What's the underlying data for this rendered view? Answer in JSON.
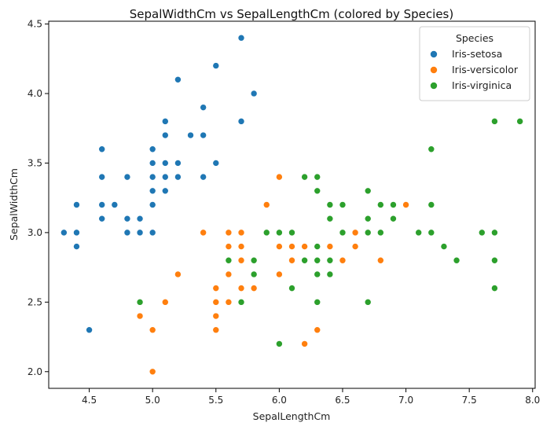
{
  "chart_data": {
    "type": "scatter",
    "title": "SepalWidthCm vs SepalLengthCm (colored by Species)",
    "xlabel": "SepalLengthCm",
    "ylabel": "SepalWidthCm",
    "xlim": [
      4.18,
      8.02
    ],
    "ylim": [
      1.88,
      4.52
    ],
    "xticks": [
      4.5,
      5.0,
      5.5,
      6.0,
      6.5,
      7.0,
      7.5,
      8.0
    ],
    "yticks": [
      2.0,
      2.5,
      3.0,
      3.5,
      4.0,
      4.5
    ],
    "grid": false,
    "legend": {
      "title": "Species",
      "placement": "top-right"
    },
    "series": [
      {
        "name": "Iris-setosa",
        "color": "#1f77b4",
        "points": [
          [
            4.3,
            3.0
          ],
          [
            4.4,
            3.2
          ],
          [
            4.4,
            3.0
          ],
          [
            4.4,
            2.9
          ],
          [
            4.5,
            2.3
          ],
          [
            4.6,
            3.6
          ],
          [
            4.6,
            3.4
          ],
          [
            4.6,
            3.2
          ],
          [
            4.6,
            3.1
          ],
          [
            4.7,
            3.2
          ],
          [
            4.8,
            3.4
          ],
          [
            4.8,
            3.1
          ],
          [
            4.8,
            3.0
          ],
          [
            4.9,
            3.1
          ],
          [
            4.9,
            3.0
          ],
          [
            5.0,
            3.6
          ],
          [
            5.0,
            3.5
          ],
          [
            5.0,
            3.4
          ],
          [
            5.0,
            3.3
          ],
          [
            5.0,
            3.2
          ],
          [
            5.0,
            3.0
          ],
          [
            5.1,
            3.8
          ],
          [
            5.1,
            3.7
          ],
          [
            5.1,
            3.5
          ],
          [
            5.1,
            3.4
          ],
          [
            5.1,
            3.3
          ],
          [
            5.2,
            4.1
          ],
          [
            5.2,
            3.5
          ],
          [
            5.2,
            3.4
          ],
          [
            5.3,
            3.7
          ],
          [
            5.4,
            3.9
          ],
          [
            5.4,
            3.7
          ],
          [
            5.4,
            3.4
          ],
          [
            5.5,
            4.2
          ],
          [
            5.5,
            3.5
          ],
          [
            5.7,
            4.4
          ],
          [
            5.7,
            3.8
          ],
          [
            5.8,
            4.0
          ]
        ]
      },
      {
        "name": "Iris-versicolor",
        "color": "#ff7f0e",
        "points": [
          [
            4.9,
            2.4
          ],
          [
            5.0,
            2.3
          ],
          [
            5.0,
            2.0
          ],
          [
            5.1,
            2.5
          ],
          [
            5.2,
            2.7
          ],
          [
            5.4,
            3.0
          ],
          [
            5.5,
            2.6
          ],
          [
            5.5,
            2.5
          ],
          [
            5.5,
            2.4
          ],
          [
            5.5,
            2.3
          ],
          [
            5.6,
            3.0
          ],
          [
            5.6,
            2.9
          ],
          [
            5.6,
            2.7
          ],
          [
            5.6,
            2.5
          ],
          [
            5.7,
            3.0
          ],
          [
            5.7,
            2.9
          ],
          [
            5.7,
            2.8
          ],
          [
            5.7,
            2.6
          ],
          [
            5.8,
            2.7
          ],
          [
            5.8,
            2.6
          ],
          [
            5.9,
            3.2
          ],
          [
            5.9,
            3.0
          ],
          [
            6.0,
            3.4
          ],
          [
            6.0,
            2.9
          ],
          [
            6.0,
            2.7
          ],
          [
            6.1,
            3.0
          ],
          [
            6.1,
            2.9
          ],
          [
            6.1,
            2.8
          ],
          [
            6.2,
            2.9
          ],
          [
            6.2,
            2.2
          ],
          [
            6.3,
            2.5
          ],
          [
            6.3,
            2.3
          ],
          [
            6.4,
            2.9
          ],
          [
            6.5,
            2.8
          ],
          [
            6.6,
            3.0
          ],
          [
            6.6,
            2.9
          ],
          [
            6.7,
            3.1
          ],
          [
            6.7,
            3.0
          ],
          [
            6.8,
            2.8
          ],
          [
            6.9,
            3.1
          ],
          [
            7.0,
            3.2
          ]
        ]
      },
      {
        "name": "Iris-virginica",
        "color": "#2ca02c",
        "points": [
          [
            4.9,
            2.5
          ],
          [
            5.6,
            2.8
          ],
          [
            5.7,
            2.5
          ],
          [
            5.8,
            2.8
          ],
          [
            5.8,
            2.7
          ],
          [
            5.9,
            3.0
          ],
          [
            6.0,
            3.0
          ],
          [
            6.0,
            2.2
          ],
          [
            6.1,
            3.0
          ],
          [
            6.1,
            2.6
          ],
          [
            6.2,
            3.4
          ],
          [
            6.2,
            2.8
          ],
          [
            6.3,
            3.4
          ],
          [
            6.3,
            3.3
          ],
          [
            6.3,
            2.9
          ],
          [
            6.3,
            2.8
          ],
          [
            6.3,
            2.7
          ],
          [
            6.3,
            2.5
          ],
          [
            6.4,
            3.2
          ],
          [
            6.4,
            3.1
          ],
          [
            6.4,
            2.8
          ],
          [
            6.4,
            2.7
          ],
          [
            6.5,
            3.2
          ],
          [
            6.5,
            3.0
          ],
          [
            6.7,
            3.3
          ],
          [
            6.7,
            3.1
          ],
          [
            6.7,
            3.0
          ],
          [
            6.7,
            2.5
          ],
          [
            6.8,
            3.2
          ],
          [
            6.8,
            3.0
          ],
          [
            6.9,
            3.2
          ],
          [
            6.9,
            3.1
          ],
          [
            7.1,
            3.0
          ],
          [
            7.2,
            3.6
          ],
          [
            7.2,
            3.2
          ],
          [
            7.2,
            3.0
          ],
          [
            7.3,
            2.9
          ],
          [
            7.4,
            2.8
          ],
          [
            7.6,
            3.0
          ],
          [
            7.7,
            3.8
          ],
          [
            7.7,
            3.0
          ],
          [
            7.7,
            2.8
          ],
          [
            7.7,
            2.6
          ],
          [
            7.9,
            3.8
          ]
        ]
      }
    ]
  }
}
